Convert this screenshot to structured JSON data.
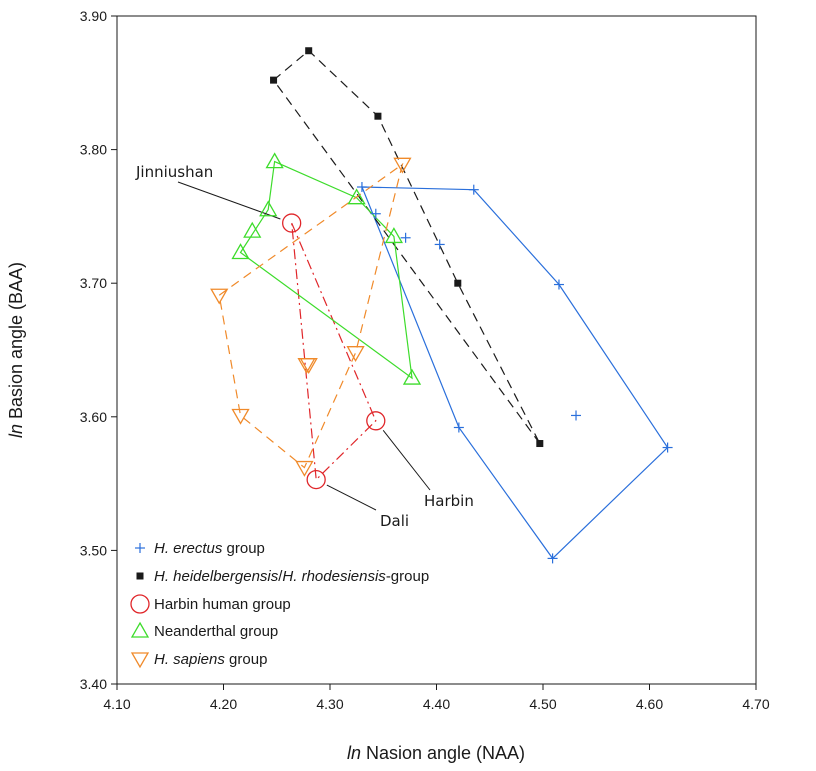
{
  "chart_data": {
    "type": "scatter",
    "xlabel_prefix": "ln",
    "xlabel_rest": " Nasion angle (NAA)",
    "ylabel_prefix": "ln",
    "ylabel_rest": " Basion angle (BAA)",
    "xlim": [
      4.1,
      4.7
    ],
    "ylim": [
      3.4,
      3.9
    ],
    "xticks": [
      "4.10",
      "4.20",
      "4.30",
      "4.40",
      "4.50",
      "4.60",
      "4.70"
    ],
    "yticks": [
      "3.40",
      "3.50",
      "3.60",
      "3.70",
      "3.80",
      "3.90"
    ],
    "grid": false,
    "legend_position": "bottom-left",
    "series": [
      {
        "key": "erectus",
        "legend_italic": "H. erectus",
        "legend_plain": " group",
        "marker": "plus",
        "color": "#2a6fdb",
        "hull_dash": "",
        "points": [
          [
            4.33,
            3.772
          ],
          [
            4.343,
            3.752
          ],
          [
            4.371,
            3.734
          ],
          [
            4.403,
            3.729
          ],
          [
            4.435,
            3.77
          ],
          [
            4.515,
            3.699
          ],
          [
            4.531,
            3.601
          ],
          [
            4.617,
            3.577
          ],
          [
            4.509,
            3.494
          ],
          [
            4.421,
            3.592
          ]
        ],
        "hull": [
          [
            4.33,
            3.772
          ],
          [
            4.435,
            3.77
          ],
          [
            4.515,
            3.699
          ],
          [
            4.617,
            3.577
          ],
          [
            4.509,
            3.494
          ],
          [
            4.421,
            3.592
          ]
        ]
      },
      {
        "key": "heidelbergensis",
        "legend_italic": "H. heidelbergensis",
        "legend_plain": "/",
        "legend_italic2": "H. rhodesiensis",
        "legend_plain2": "-group",
        "marker": "square",
        "color": "#1a1a1a",
        "hull_dash": "9,6",
        "points": [
          [
            4.247,
            3.852
          ],
          [
            4.28,
            3.874
          ],
          [
            4.345,
            3.825
          ],
          [
            4.42,
            3.7
          ],
          [
            4.497,
            3.58
          ]
        ],
        "hull": [
          [
            4.247,
            3.852
          ],
          [
            4.28,
            3.874
          ],
          [
            4.345,
            3.825
          ],
          [
            4.42,
            3.7
          ],
          [
            4.497,
            3.58
          ]
        ]
      },
      {
        "key": "harbin",
        "legend_plain": "Harbin human group",
        "marker": "circle",
        "color": "#e0262a",
        "hull_dash": "10,4,2,4",
        "points": [
          [
            4.264,
            3.745
          ],
          [
            4.343,
            3.597
          ],
          [
            4.287,
            3.553
          ]
        ],
        "hull": [
          [
            4.264,
            3.745
          ],
          [
            4.343,
            3.597
          ],
          [
            4.287,
            3.553
          ]
        ]
      },
      {
        "key": "neanderthal",
        "legend_plain": "Neanderthal group",
        "marker": "triangle-up",
        "color": "#3ddc2b",
        "hull_dash": "",
        "points": [
          [
            4.248,
            3.791
          ],
          [
            4.242,
            3.755
          ],
          [
            4.227,
            3.739
          ],
          [
            4.216,
            3.723
          ],
          [
            4.325,
            3.764
          ],
          [
            4.36,
            3.735
          ],
          [
            4.377,
            3.629
          ]
        ],
        "hull": [
          [
            4.248,
            3.791
          ],
          [
            4.325,
            3.764
          ],
          [
            4.36,
            3.735
          ],
          [
            4.377,
            3.629
          ],
          [
            4.216,
            3.723
          ],
          [
            4.242,
            3.755
          ]
        ]
      },
      {
        "key": "sapiens",
        "legend_italic": "H. sapiens",
        "legend_plain": " group",
        "marker": "triangle-down",
        "color": "#f08a2a",
        "hull_dash": "9,6",
        "points": [
          [
            4.196,
            3.691
          ],
          [
            4.216,
            3.601
          ],
          [
            4.276,
            3.562
          ],
          [
            4.278,
            3.639
          ],
          [
            4.28,
            3.639
          ],
          [
            4.324,
            3.648
          ],
          [
            4.368,
            3.789
          ]
        ],
        "hull": [
          [
            4.196,
            3.691
          ],
          [
            4.368,
            3.789
          ],
          [
            4.324,
            3.648
          ],
          [
            4.276,
            3.562
          ],
          [
            4.216,
            3.601
          ]
        ]
      }
    ],
    "annotations": [
      {
        "text": "Jinniushan",
        "point": [
          4.264,
          3.745
        ]
      },
      {
        "text": "Harbin",
        "point": [
          4.343,
          3.597
        ]
      },
      {
        "text": "Dali",
        "point": [
          4.287,
          3.553
        ]
      }
    ]
  }
}
